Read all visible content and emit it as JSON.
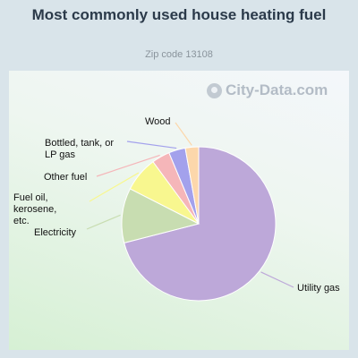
{
  "watermark": {
    "text": "City-Data.com",
    "icon": "city-data-logo-icon"
  },
  "chart_data": {
    "type": "pie",
    "title": "Most commonly used house heating fuel",
    "subtitle": "Zip code 13108",
    "slices": [
      {
        "label": "Utility gas",
        "value": 71.0,
        "color": "#bda8d9"
      },
      {
        "label": "Electricity",
        "value": 11.5,
        "color": "#c8ddb1"
      },
      {
        "label": "Fuel oil, kerosene, etc.",
        "value": 7.4,
        "color": "#f8f78f"
      },
      {
        "label": "Other fuel",
        "value": 3.8,
        "color": "#f5b6b9"
      },
      {
        "label": "Bottled, tank, or LP gas",
        "value": 3.5,
        "color": "#a3a1ec"
      },
      {
        "label": "Wood",
        "value": 2.8,
        "color": "#fcd7ab"
      }
    ],
    "legend": "none"
  }
}
